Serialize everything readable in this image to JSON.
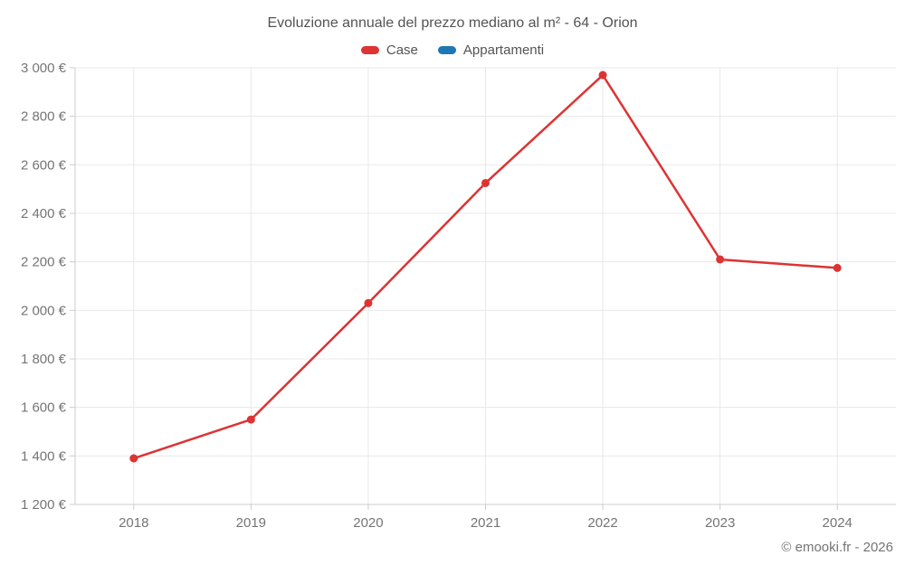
{
  "header": {
    "title": "Evoluzione annuale del prezzo mediano al m² - 64 - Orion"
  },
  "legend": {
    "items": [
      {
        "label": "Case",
        "color": "#dd3333"
      },
      {
        "label": "Appartamenti",
        "color": "#1f77b4"
      }
    ]
  },
  "footer": {
    "credit": "© emooki.fr - 2026"
  },
  "colors": {
    "background": "#ffffff",
    "grid": "#e8e8e8",
    "axis": "#cccccc",
    "tick_label": "#757575",
    "title_text": "#545454",
    "case_red": "#dd3333",
    "appartamenti_blue": "#1f77b4"
  },
  "chart_data": {
    "type": "line",
    "title": "Evoluzione annuale del prezzo mediano al m² - 64 - Orion",
    "categories": [
      "2018",
      "2019",
      "2020",
      "2021",
      "2022",
      "2023",
      "2024"
    ],
    "series": [
      {
        "name": "Case",
        "color": "#dd3333",
        "values": [
          1390,
          1550,
          2030,
          2525,
          2970,
          2210,
          2175
        ]
      },
      {
        "name": "Appartamenti",
        "color": "#1f77b4",
        "values": []
      }
    ],
    "xlabel": "",
    "ylabel": "",
    "ylim": [
      1200,
      3000
    ],
    "yticks": [
      1200,
      1400,
      1600,
      1800,
      2000,
      2200,
      2400,
      2600,
      2800,
      3000
    ],
    "ytick_labels": [
      "1 200 €",
      "1 400 €",
      "1 600 €",
      "1 800 €",
      "2 000 €",
      "2 200 €",
      "2 400 €",
      "2 600 €",
      "2 800 €",
      "3 000 €"
    ],
    "grid": true,
    "legend_position": "top",
    "marker": "circle",
    "annotation": "© emooki.fr - 2026"
  }
}
